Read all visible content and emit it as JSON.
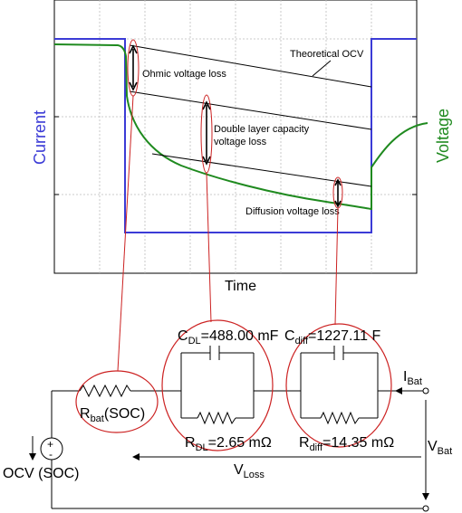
{
  "chart": {
    "x_axis_label": "Time",
    "left_axis_label": "Current",
    "right_axis_label": "Voltage",
    "annotations": {
      "theoretical_ocv": "Theoretical OCV",
      "ohmic_loss": "Ohmic voltage loss",
      "double_layer_line1": "Double layer capacity",
      "double_layer_line2": "voltage loss",
      "diffusion_loss": "Diffusion voltage loss"
    },
    "colors": {
      "current": "#3b3bd6",
      "voltage": "#1f8a1f",
      "callout": "#cc2222"
    }
  },
  "circuit": {
    "c_dl": {
      "main": "C",
      "sub": "DL",
      "value": "=488.00 mF"
    },
    "c_diff": {
      "main": "C",
      "sub": "diff",
      "value": "=1227.11 F"
    },
    "r_bat": {
      "main": "R",
      "sub": "bat",
      "value": "(SOC)"
    },
    "r_dl": {
      "main": "R",
      "sub": "DL",
      "value": "=2.65 mΩ"
    },
    "r_diff": {
      "main": "R",
      "sub": "diff",
      "value": "=14.35 mΩ"
    },
    "i_bat": {
      "main": "I",
      "sub": "Bat"
    },
    "v_bat": {
      "main": "V",
      "sub": "Bat"
    },
    "v_loss": {
      "main": "V",
      "sub": "Loss"
    },
    "ocv_label": "OCV (SOC)",
    "plus_sign": "+",
    "minus_sign": "-"
  }
}
